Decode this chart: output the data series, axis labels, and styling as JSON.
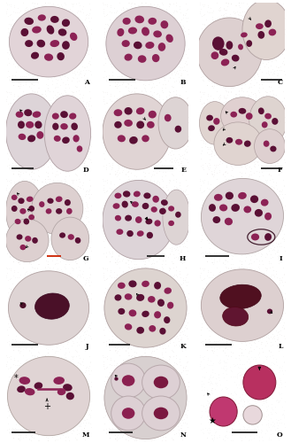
{
  "figure_width": 3.29,
  "figure_height": 5.0,
  "dpi": 100,
  "nrows": 5,
  "ncols": 3,
  "panel_labels": [
    "A",
    "B",
    "C",
    "D",
    "E",
    "F",
    "G",
    "H",
    "I",
    "J",
    "K",
    "L",
    "M",
    "N",
    "O"
  ],
  "bg_outer": "#d8cfc8",
  "bg_A": "#d4cbc4",
  "bg_B": "#cec8c2",
  "bg_C": "#cdc8c2",
  "bg_D": "#cec8c4",
  "bg_E": "#d0cac5",
  "bg_F": "#cdc7c2",
  "bg_G": "#d2cbc6",
  "bg_H": "#d0cac6",
  "bg_I": "#d5d0ca",
  "bg_J": "#d8d0cc",
  "bg_K": "#cdc8c4",
  "bg_L": "#cec8c4",
  "bg_M": "#d5cdc8",
  "bg_N": "#d0cbc6",
  "bg_O": "#e8e0dc",
  "cell_fill_A": "#e0d4d8",
  "cell_fill_B": "#ddd4d8",
  "cell_fill_pink": "#e8d8dc",
  "cell_fill_pale": "#ded8d8",
  "cell_border": "#b8a8ac",
  "chrom_dark": "#5a1035",
  "chrom_mid": "#8c2255",
  "chrom_bright": "#cc4488",
  "chrom_pink": "#c87898",
  "pollen_fill": "#c03870",
  "pollen_sterile": "#e8d0d8",
  "label_fs": 5.5,
  "scalebar_color": "#222222",
  "red_scalebar": "#cc2200"
}
